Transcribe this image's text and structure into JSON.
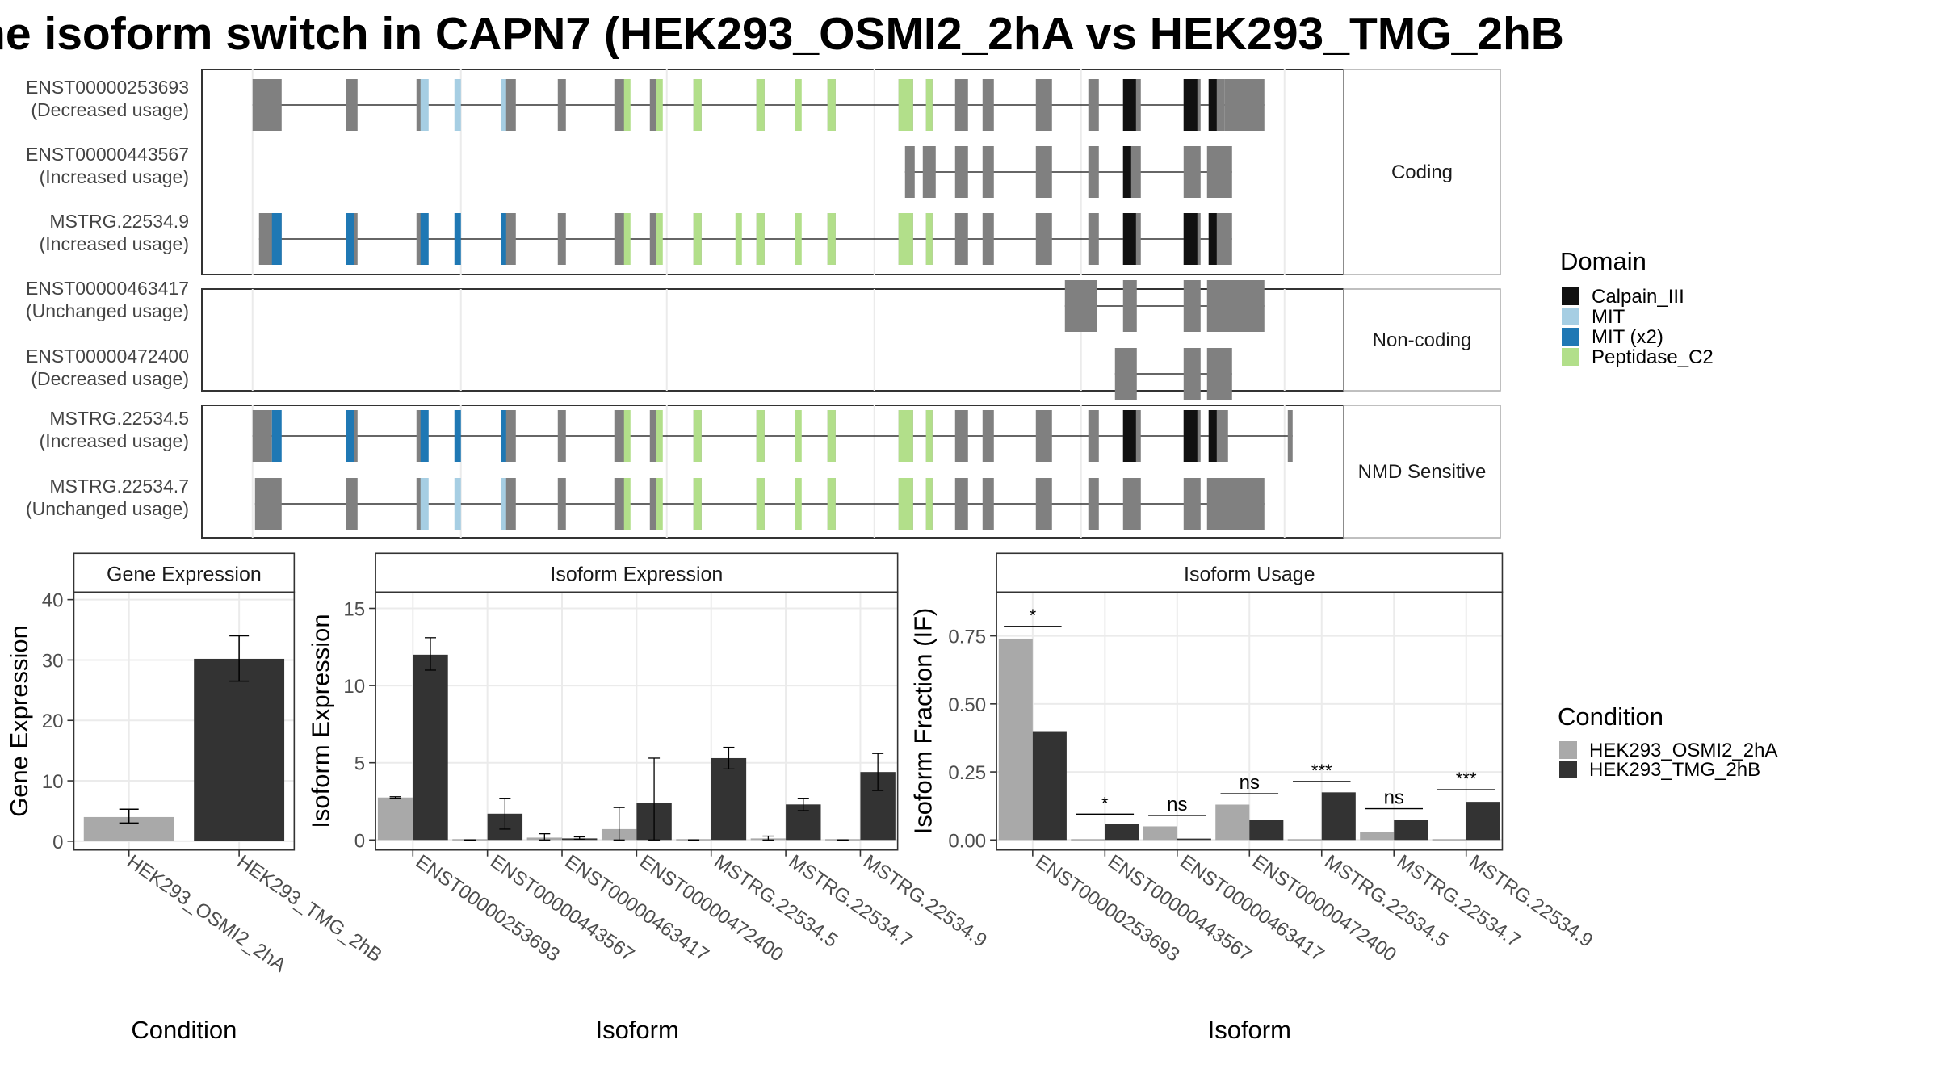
{
  "title": "he isoform switch in CAPN7 (HEK293_OSMI2_2hA vs HEK293_TMG_2hB",
  "colors": {
    "Calpain_III": "#111111",
    "MIT": "#a6cee3",
    "MIT (x2)": "#1f78b4",
    "Peptidase_C2": "#b2df8a",
    "exon": "#808080",
    "cond1": "#a9a9a9",
    "cond2": "#333333"
  },
  "legend_domain": {
    "title": "Domain",
    "items": [
      "Calpain_III",
      "MIT",
      "MIT (x2)",
      "Peptidase_C2"
    ]
  },
  "legend_condition": {
    "title": "Condition",
    "items": [
      "HEK293_OSMI2_2hA",
      "HEK293_TMG_2hB"
    ]
  },
  "transcript_panels": [
    {
      "label": "Coding",
      "transcripts": [
        {
          "id": "ENST00000253693",
          "usage": "(Decreased usage)",
          "shape": "full"
        },
        {
          "id": "ENST00000443567",
          "usage": "(Increased usage)",
          "shape": "short443"
        },
        {
          "id": "MSTRG.22534.9",
          "usage": "(Increased usage)",
          "shape": "fullDark"
        }
      ]
    },
    {
      "label": "Non-coding",
      "transcripts": [
        {
          "id": "ENST00000463417",
          "usage": "(Unchanged usage)",
          "shape": "nc463"
        },
        {
          "id": "ENST00000472400",
          "usage": "(Decreased usage)",
          "shape": "nc472"
        }
      ]
    },
    {
      "label": "NMD Sensitive",
      "transcripts": [
        {
          "id": "MSTRG.22534.5",
          "usage": "(Increased usage)",
          "shape": "fullDarkLong"
        },
        {
          "id": "MSTRG.22534.7",
          "usage": "(Unchanged usage)",
          "shape": "nmd7"
        }
      ]
    }
  ],
  "chart_data": [
    {
      "type": "bar",
      "title": "Gene Expression",
      "xlabel": "Condition",
      "ylabel": "Gene Expression",
      "ylim": [
        0,
        42
      ],
      "yticks": [
        0,
        10,
        20,
        30,
        40
      ],
      "categories": [
        "HEK293_OSMI2_2hA",
        "HEK293_TMG_2hB"
      ],
      "values": [
        4.0,
        30.2
      ],
      "errors": [
        [
          3.0,
          5.3
        ],
        [
          26.5,
          34.0
        ]
      ]
    },
    {
      "type": "bar",
      "title": "Isoform Expression",
      "xlabel": "Isoform",
      "ylabel": "Isoform Expression",
      "ylim": [
        0,
        16
      ],
      "yticks": [
        0,
        5,
        10,
        15
      ],
      "categories": [
        "ENST00000253693",
        "ENST00000443567",
        "ENST00000463417",
        "ENST00000472400",
        "MSTRG.22534.5",
        "MSTRG.22534.7",
        "MSTRG.22534.9"
      ],
      "series": [
        {
          "name": "HEK293_OSMI2_2hA",
          "values": [
            2.75,
            0.0,
            0.15,
            0.7,
            0.0,
            0.1,
            0.0
          ],
          "errors": [
            [
              2.7,
              2.8
            ],
            [
              0,
              0
            ],
            [
              0.0,
              0.4
            ],
            [
              0.0,
              2.1
            ],
            [
              0,
              0
            ],
            [
              0.0,
              0.25
            ],
            [
              0,
              0
            ]
          ]
        },
        {
          "name": "HEK293_TMG_2hB",
          "values": [
            12.0,
            1.7,
            0.1,
            2.4,
            5.3,
            2.3,
            4.4
          ],
          "errors": [
            [
              11.0,
              13.1
            ],
            [
              0.7,
              2.7
            ],
            [
              0.05,
              0.2
            ],
            [
              0.0,
              5.3
            ],
            [
              4.6,
              6.0
            ],
            [
              1.9,
              2.7
            ],
            [
              3.2,
              5.6
            ]
          ]
        }
      ]
    },
    {
      "type": "bar",
      "title": "Isoform Usage",
      "xlabel": "Isoform",
      "ylabel": "Isoform Fraction (IF)",
      "ylim": [
        -0.03,
        0.87
      ],
      "yticks": [
        "0.00",
        "0.25",
        "0.50",
        "0.75"
      ],
      "categories": [
        "ENST00000253693",
        "ENST00000443567",
        "ENST00000463417",
        "ENST00000472400",
        "MSTRG.22534.5",
        "MSTRG.22534.7",
        "MSTRG.22534.9"
      ],
      "series": [
        {
          "name": "HEK293_OSMI2_2hA",
          "values": [
            0.74,
            0.0,
            0.05,
            0.13,
            0.0,
            0.03,
            0.0
          ]
        },
        {
          "name": "HEK293_TMG_2hB",
          "values": [
            0.4,
            0.06,
            0.005,
            0.075,
            0.175,
            0.075,
            0.14
          ]
        }
      ],
      "significance": [
        "*",
        "*",
        "ns",
        "ns",
        "***",
        "ns",
        "***"
      ],
      "sig_levels": [
        0.785,
        0.095,
        0.09,
        0.17,
        0.215,
        0.115,
        0.185
      ]
    }
  ]
}
